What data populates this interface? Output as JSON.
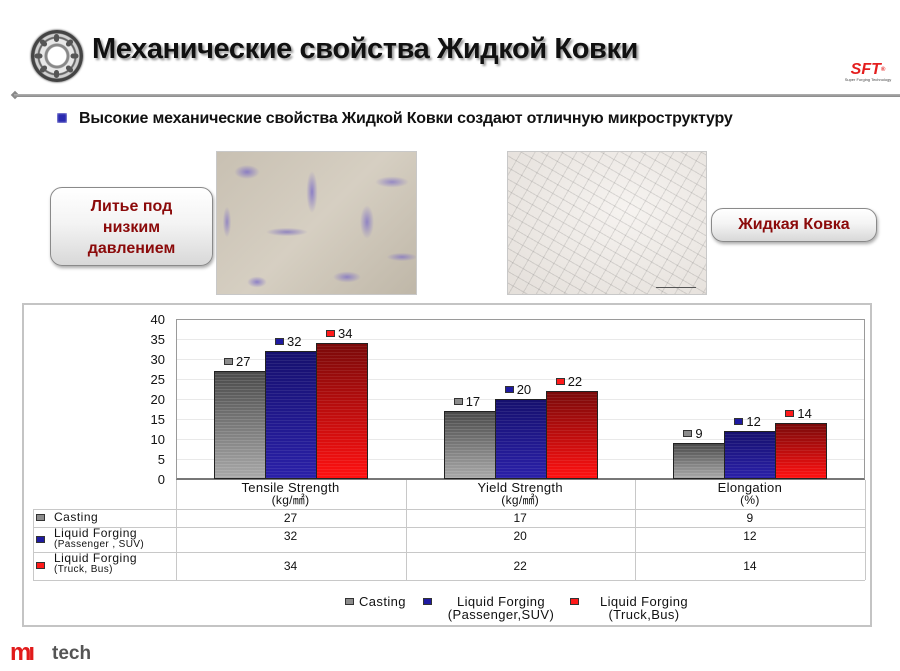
{
  "header": {
    "title": "Механические свойства Жидкой Ковки",
    "brand_logo": {
      "mark": "SFT",
      "registered": "®",
      "tagline": "Super Forging Technology"
    }
  },
  "subtitle": "Высокие механические свойства Жидкой Ковки создают отличную микроструктуру",
  "microstructure": {
    "left_label": "Литье под низким давлением",
    "left_label_lines": [
      "Литье под",
      "низким",
      "давлением"
    ],
    "right_label": "Жидкая Ковка"
  },
  "footer": {
    "logo_mark": "mı",
    "logo_text": "tech"
  },
  "colors": {
    "casting": "#8c8c8c",
    "lf_passenger": "#1e1aa0",
    "lf_truck": "#ff1a1a",
    "label_red": "#8b0a0a",
    "bullet": "#2a2ab0",
    "brand_red": "#e11b1b"
  },
  "chart_data": {
    "type": "bar",
    "title": "",
    "xlabel": "",
    "ylabel": "",
    "ylim": [
      0,
      40
    ],
    "yticks": [
      0,
      5,
      10,
      15,
      20,
      25,
      30,
      35,
      40
    ],
    "grid": true,
    "legend_position": "bottom",
    "categories": [
      "Tensile Strength",
      "Yield Strength",
      "Elongation"
    ],
    "category_units": [
      "(kg/㎟)",
      "(kg/㎟)",
      "(%)"
    ],
    "series": [
      {
        "name": "Casting",
        "table_label": "Casting",
        "table_sub": "",
        "legend_label": "Casting",
        "legend_sub": "",
        "color": "#8c8c8c",
        "values": [
          27,
          17,
          9
        ]
      },
      {
        "name": "Liquid Forging (Passenger, SUV)",
        "table_label": "Liquid Forging",
        "table_sub": "(Passenger , SUV)",
        "legend_label": "Liquid Forging",
        "legend_sub": "(Passenger,SUV)",
        "color": "#1e1aa0",
        "values": [
          32,
          20,
          12
        ]
      },
      {
        "name": "Liquid Forging (Truck, Bus)",
        "table_label": "Liquid Forging",
        "table_sub": "(Truck, Bus)",
        "legend_label": "Liquid Forging",
        "legend_sub": "(Truck,Bus)",
        "color": "#ff1a1a",
        "values": [
          34,
          22,
          14
        ]
      }
    ],
    "data_table": true
  }
}
